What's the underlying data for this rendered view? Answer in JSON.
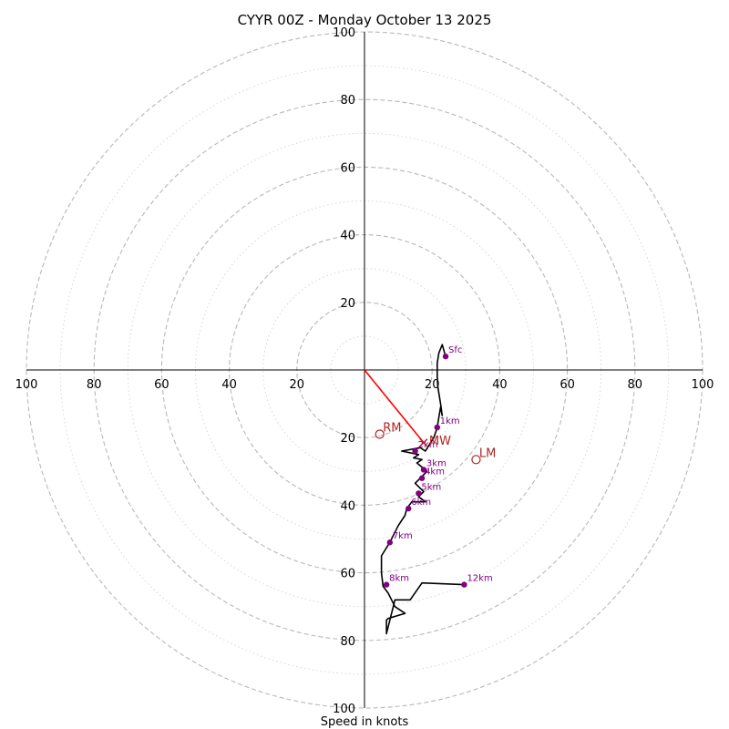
{
  "chart_data": {
    "type": "hodograph",
    "title": "CYYR 00Z - Monday October 13 2025",
    "xlabel": "Speed in knots",
    "units": "knots",
    "axis_range": [
      -100,
      100
    ],
    "ring_major": [
      20,
      40,
      60,
      80,
      100
    ],
    "ring_minor": [
      10,
      30,
      50,
      70,
      90
    ],
    "tick_labels": {
      "x": [
        "100",
        "80",
        "60",
        "40",
        "20",
        "20",
        "40",
        "60",
        "80",
        "100"
      ],
      "y": [
        "100",
        "80",
        "60",
        "40",
        "20",
        "20",
        "40",
        "60",
        "80",
        "100"
      ]
    },
    "wind_profile": {
      "u": [
        24,
        23,
        22,
        21.5,
        21.5,
        21.7,
        22.5,
        23,
        22.5,
        22,
        21.5,
        20.5,
        18,
        16.5,
        11,
        16,
        14.5,
        17,
        15.5,
        18.5,
        15,
        17.5,
        16,
        18,
        14,
        12.5,
        12,
        10,
        7.5,
        5,
        5,
        5.5,
        7,
        9,
        12,
        7,
        6.5,
        6.5,
        9,
        13.5,
        17,
        29.5
      ],
      "v": [
        4,
        7.5,
        5,
        2,
        -2,
        -5,
        -10,
        -13.5,
        -11,
        -14,
        -17,
        -20,
        -24,
        -23,
        -24,
        -25,
        -26,
        -26.5,
        -27.5,
        -30,
        -33.5,
        -36,
        -37.5,
        -39,
        -39,
        -41,
        -43,
        -46,
        -51,
        -55,
        -60,
        -64,
        -66,
        -70,
        -72,
        -73.5,
        -74,
        -78,
        -68,
        -68,
        -63,
        -63.5
      ]
    },
    "height_labels": [
      {
        "text": "Sfc",
        "u": 24,
        "v": 4
      },
      {
        "text": "1km",
        "u": 21.5,
        "v": -17
      },
      {
        "text": "2km",
        "u": 15,
        "v": -24
      },
      {
        "text": "3km",
        "u": 17.5,
        "v": -29.5
      },
      {
        "text": "4km",
        "u": 17,
        "v": -32
      },
      {
        "text": "5km",
        "u": 16,
        "v": -36.5
      },
      {
        "text": "6km",
        "u": 13,
        "v": -41
      },
      {
        "text": "7km",
        "u": 7.5,
        "v": -51
      },
      {
        "text": "8km",
        "u": 6.5,
        "v": -63.5
      },
      {
        "text": "12km",
        "u": 29.5,
        "v": -63.5
      }
    ],
    "storm_motion": {
      "RM": {
        "text": "RM",
        "u": 4.5,
        "v": -19
      },
      "LM": {
        "text": "LM",
        "u": 33,
        "v": -26.5
      },
      "MW": {
        "text": "MW",
        "u": 17.5,
        "v": -21.5
      }
    },
    "colors": {
      "profile": "#000000",
      "height_marker": "#800080",
      "storm_marker": "#b22222",
      "mean_wind_vector": "#ff0000",
      "ring": "#b8b8b8",
      "minor_ring": "#d6d6d6"
    }
  }
}
